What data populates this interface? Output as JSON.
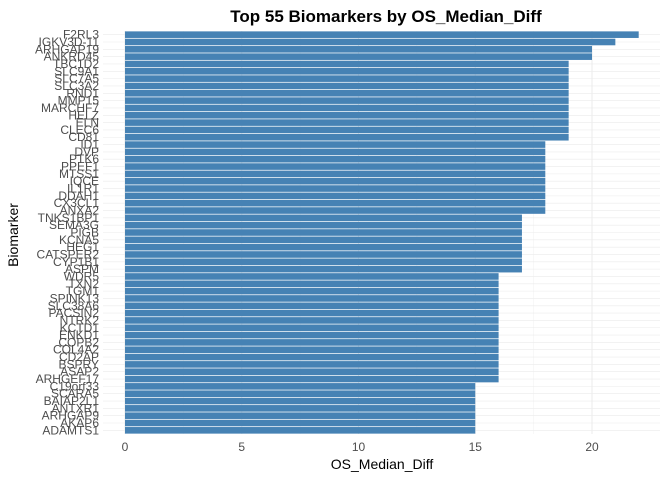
{
  "chart_data": {
    "type": "bar",
    "orientation": "horizontal",
    "title": "Top 55 Biomarkers by OS_Median_Diff",
    "xlabel": "OS_Median_Diff",
    "ylabel": "Biomarker",
    "xlim": [
      0,
      22
    ],
    "xticks": [
      0,
      5,
      10,
      15,
      20
    ],
    "bar_color": "#4682B4",
    "grid": true,
    "legend": "none",
    "categories": [
      "F2RL3",
      "IGKV3D-11",
      "ARHGAP19",
      "ANKRD45",
      "TBC1D2",
      "SLC9A1",
      "SLC7A5",
      "SLC3A2",
      "RND1",
      "MMP15",
      "MARCHF7",
      "HELZ",
      "ELN",
      "CLEC6",
      "CD81",
      "ID1",
      "DVP",
      "PTK6",
      "PPEF1",
      "MTSS1",
      "IQCE",
      "IL1R1",
      "DDAH1",
      "CX3CL1",
      "ANXA2",
      "TNKS1BP1",
      "SEMA3G",
      "PIGB",
      "KCNA5",
      "HEG1",
      "CATSPER2",
      "CYP1B1",
      "ASPM",
      "WDR5",
      "TXN2",
      "TGM1",
      "SPINK13",
      "SLC38A6",
      "PACSIN2",
      "NTRK2",
      "KCTD1",
      "ENKD1",
      "COPB2",
      "COL4A2",
      "CD2AP",
      "BSPRY",
      "ASAP2",
      "ARHGEF17",
      "C19orf33",
      "SCARA5",
      "BAIAP2L1",
      "ANTXR1",
      "ARHGAP9",
      "AKAP6",
      "ADAMTS1"
    ],
    "values": [
      22,
      21,
      20,
      20,
      19,
      19,
      19,
      19,
      19,
      19,
      19,
      19,
      19,
      19,
      19,
      18,
      18,
      18,
      18,
      18,
      18,
      18,
      18,
      18,
      18,
      17,
      17,
      17,
      17,
      17,
      17,
      17,
      17,
      16,
      16,
      16,
      16,
      16,
      16,
      16,
      16,
      16,
      16,
      16,
      16,
      16,
      16,
      16,
      15,
      15,
      15,
      15,
      15,
      15,
      15
    ]
  }
}
